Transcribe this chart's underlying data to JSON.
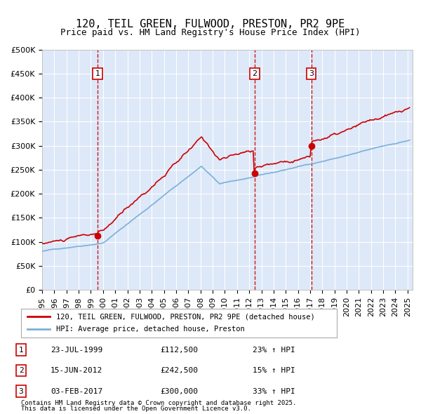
{
  "title": "120, TEIL GREEN, FULWOOD, PRESTON, PR2 9PE",
  "subtitle": "Price paid vs. HM Land Registry's House Price Index (HPI)",
  "legend_line1": "120, TEIL GREEN, FULWOOD, PRESTON, PR2 9PE (detached house)",
  "legend_line2": "HPI: Average price, detached house, Preston",
  "sale1_date": "23-JUL-1999",
  "sale1_price": 112500,
  "sale1_hpi": "23% ↑ HPI",
  "sale2_date": "15-JUN-2012",
  "sale2_price": 242500,
  "sale2_hpi": "15% ↑ HPI",
  "sale3_date": "03-FEB-2017",
  "sale3_price": 300000,
  "sale3_hpi": "33% ↑ HPI",
  "footnote1": "Contains HM Land Registry data © Crown copyright and database right 2025.",
  "footnote2": "This data is licensed under the Open Government Licence v3.0.",
  "ylim": [
    0,
    500000
  ],
  "bg_color": "#dde8f8",
  "plot_bg": "#dde8f8",
  "grid_color": "#ffffff",
  "red_line_color": "#cc0000",
  "blue_line_color": "#7ab0d8",
  "vline_color": "#cc0000",
  "marker_color": "#cc0000",
  "box_color": "#cc0000"
}
